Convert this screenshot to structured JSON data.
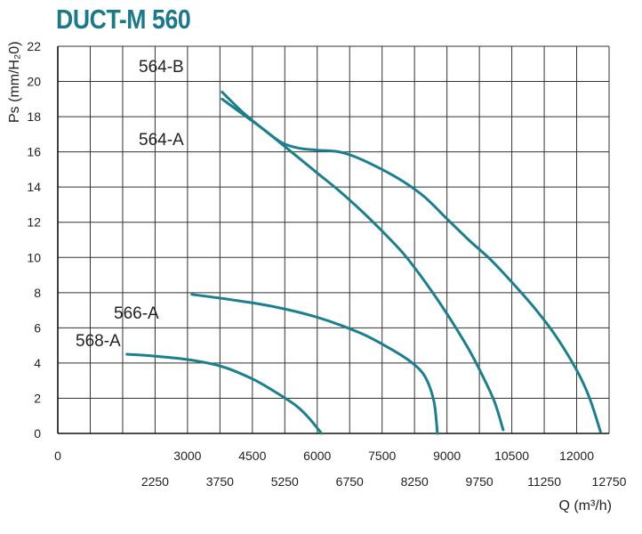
{
  "chart_data": {
    "type": "line",
    "title": "DUCT-M 560",
    "xlabel": "Q (m³/h)",
    "ylabel": "Ps (mm/H₂0)",
    "xlim": [
      0,
      12750
    ],
    "ylim": [
      0,
      22
    ],
    "x_ticks_top_row": [
      "0",
      "3000",
      "4500",
      "6000",
      "7500",
      "9000",
      "10500",
      "12000"
    ],
    "x_ticks_top_values": [
      0,
      3000,
      4500,
      6000,
      7500,
      9000,
      10500,
      12000
    ],
    "x_ticks_bottom_row": [
      "2250",
      "3750",
      "5250",
      "6750",
      "8250",
      "9750",
      "11250",
      "12750"
    ],
    "x_ticks_bottom_values": [
      2250,
      3750,
      5250,
      6750,
      8250,
      9750,
      11250,
      12750
    ],
    "y_ticks": [
      0,
      2,
      4,
      6,
      8,
      10,
      12,
      14,
      16,
      18,
      20,
      22
    ],
    "grid": true,
    "line_color": "#1a7f8e",
    "series": [
      {
        "name": "564-B",
        "points": [
          [
            3800,
            19.4
          ],
          [
            4300,
            18.2
          ],
          [
            4800,
            17.2
          ],
          [
            5200,
            16.5
          ],
          [
            5600,
            16.2
          ],
          [
            6000,
            16.1
          ],
          [
            6500,
            16.0
          ],
          [
            6900,
            15.7
          ],
          [
            7500,
            15.0
          ],
          [
            8000,
            14.3
          ],
          [
            8500,
            13.4
          ],
          [
            9000,
            12.2
          ],
          [
            9500,
            11.0
          ],
          [
            10000,
            9.9
          ],
          [
            10500,
            8.6
          ],
          [
            11000,
            7.2
          ],
          [
            11500,
            5.6
          ],
          [
            12000,
            3.6
          ],
          [
            12300,
            2.0
          ],
          [
            12550,
            0.1
          ]
        ]
      },
      {
        "name": "564-A",
        "points": [
          [
            3800,
            19.0
          ],
          [
            4300,
            18.1
          ],
          [
            4800,
            17.2
          ],
          [
            5500,
            15.8
          ],
          [
            6000,
            14.8
          ],
          [
            6500,
            13.8
          ],
          [
            7000,
            12.7
          ],
          [
            7500,
            11.5
          ],
          [
            8000,
            10.2
          ],
          [
            8500,
            8.6
          ],
          [
            9000,
            6.8
          ],
          [
            9500,
            4.8
          ],
          [
            9800,
            3.4
          ],
          [
            10100,
            1.8
          ],
          [
            10300,
            0.2
          ]
        ]
      },
      {
        "name": "566-A",
        "points": [
          [
            3100,
            7.9
          ],
          [
            4000,
            7.6
          ],
          [
            5000,
            7.2
          ],
          [
            6000,
            6.6
          ],
          [
            7000,
            5.7
          ],
          [
            7700,
            4.8
          ],
          [
            8200,
            4.0
          ],
          [
            8500,
            3.2
          ],
          [
            8700,
            1.8
          ],
          [
            8780,
            0.0
          ]
        ]
      },
      {
        "name": "568-A",
        "points": [
          [
            1600,
            4.5
          ],
          [
            2200,
            4.4
          ],
          [
            3000,
            4.2
          ],
          [
            3800,
            3.8
          ],
          [
            4500,
            3.1
          ],
          [
            5000,
            2.4
          ],
          [
            5500,
            1.6
          ],
          [
            5800,
            0.9
          ],
          [
            6100,
            0.0
          ]
        ]
      }
    ]
  }
}
